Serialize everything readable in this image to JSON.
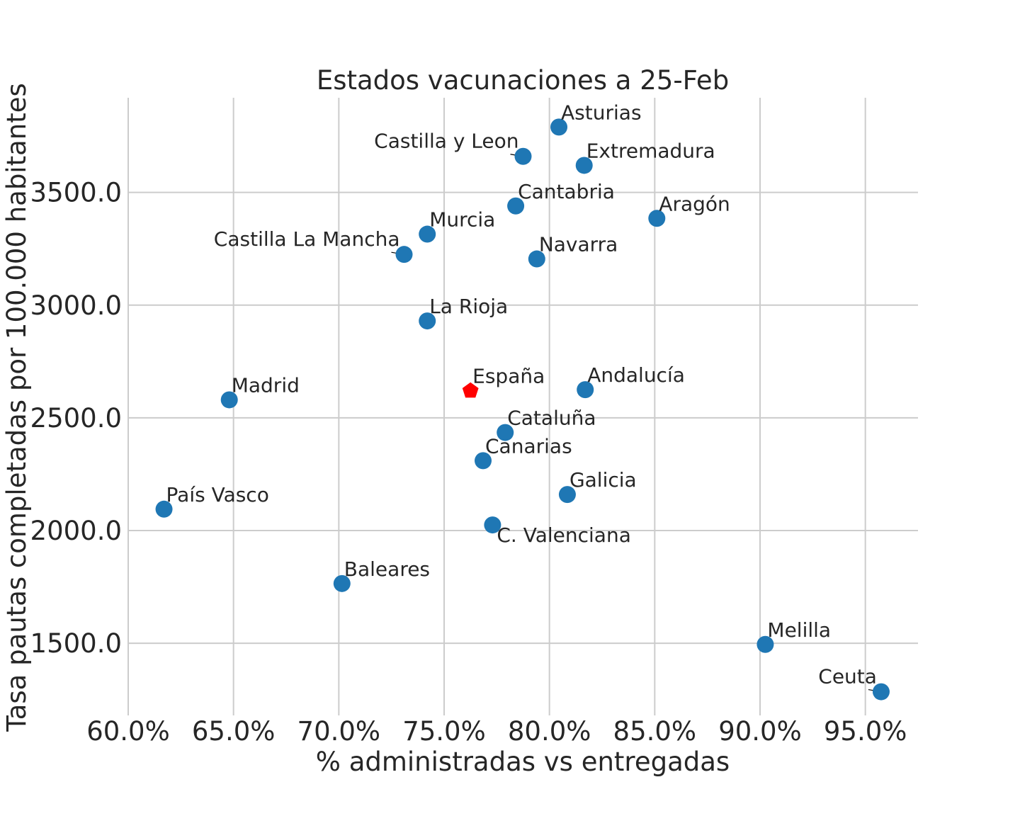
{
  "chart_data": {
    "type": "scatter",
    "title": "Estados vacunaciones a 25-Feb",
    "xlabel": "% administradas vs entregadas",
    "ylabel": "Tasa pautas completadas por 100.000 habitantes",
    "xlim": [
      60.0,
      97.5
    ],
    "ylim": [
      1180,
      3920
    ],
    "xticks": [
      60.0,
      65.0,
      70.0,
      75.0,
      80.0,
      85.0,
      90.0,
      95.0
    ],
    "yticks": [
      1500.0,
      2000.0,
      2500.0,
      3000.0,
      3500.0
    ],
    "xtick_labels": [
      "60.0%",
      "65.0%",
      "70.0%",
      "75.0%",
      "80.0%",
      "85.0%",
      "90.0%",
      "95.0%"
    ],
    "ytick_labels": [
      "1500.0",
      "2000.0",
      "2500.0",
      "3000.0",
      "3500.0"
    ],
    "grid": true,
    "colors": {
      "points": "#1f77b4",
      "highlight": "#ff0000",
      "grid": "#cccccc",
      "text": "#262626"
    },
    "points": [
      {
        "label": "Asturias",
        "x": 80.45,
        "y": 3790,
        "label_pos": "right"
      },
      {
        "label": "Castilla y Leon",
        "x": 78.75,
        "y": 3660,
        "label_pos": "left"
      },
      {
        "label": "Extremadura",
        "x": 81.65,
        "y": 3620,
        "label_pos": "right"
      },
      {
        "label": "Cantabria",
        "x": 78.4,
        "y": 3440,
        "label_pos": "right"
      },
      {
        "label": "Aragón",
        "x": 85.1,
        "y": 3385,
        "label_pos": "right"
      },
      {
        "label": "Murcia",
        "x": 74.2,
        "y": 3315,
        "label_pos": "right"
      },
      {
        "label": "Castilla La Mancha",
        "x": 73.1,
        "y": 3225,
        "label_pos": "left"
      },
      {
        "label": "Navarra",
        "x": 79.4,
        "y": 3205,
        "label_pos": "right"
      },
      {
        "label": "La Rioja",
        "x": 74.2,
        "y": 2930,
        "label_pos": "right"
      },
      {
        "label": "Andalucía",
        "x": 81.7,
        "y": 2625,
        "label_pos": "right"
      },
      {
        "label": "Madrid",
        "x": 64.8,
        "y": 2580,
        "label_pos": "right"
      },
      {
        "label": "Cataluña",
        "x": 77.9,
        "y": 2435,
        "label_pos": "right"
      },
      {
        "label": "Canarias",
        "x": 76.85,
        "y": 2310,
        "label_pos": "right"
      },
      {
        "label": "Galicia",
        "x": 80.85,
        "y": 2160,
        "label_pos": "right"
      },
      {
        "label": "País Vasco",
        "x": 61.7,
        "y": 2095,
        "label_pos": "right"
      },
      {
        "label": "C. Valenciana",
        "x": 77.3,
        "y": 2025,
        "label_pos": "below"
      },
      {
        "label": "Baleares",
        "x": 70.15,
        "y": 1765,
        "label_pos": "right"
      },
      {
        "label": "Melilla",
        "x": 90.25,
        "y": 1495,
        "label_pos": "right"
      },
      {
        "label": "Ceuta",
        "x": 95.75,
        "y": 1285,
        "label_pos": "left"
      }
    ],
    "highlight": {
      "label": "España",
      "x": 76.25,
      "y": 2620,
      "marker": "pentagon",
      "label_pos": "right"
    }
  }
}
